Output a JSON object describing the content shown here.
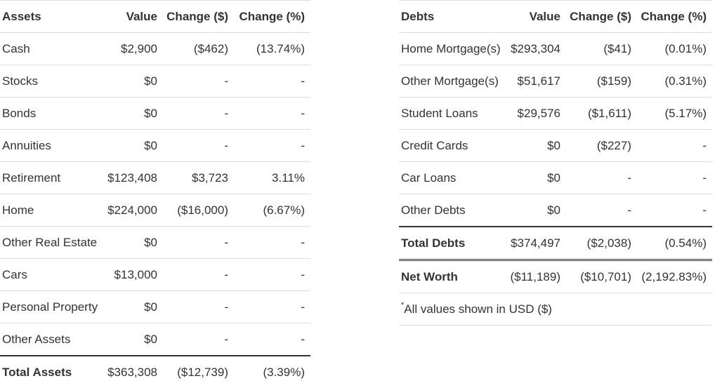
{
  "assets": {
    "headers": {
      "name": "Assets",
      "value": "Value",
      "change_abs": "Change ($)",
      "change_pct": "Change (%)"
    },
    "rows": [
      {
        "name": "Cash",
        "value": "$2,900",
        "change_abs": "($462)",
        "change_pct": "(13.74%)"
      },
      {
        "name": "Stocks",
        "value": "$0",
        "change_abs": "-",
        "change_pct": "-"
      },
      {
        "name": "Bonds",
        "value": "$0",
        "change_abs": "-",
        "change_pct": "-"
      },
      {
        "name": "Annuities",
        "value": "$0",
        "change_abs": "-",
        "change_pct": "-"
      },
      {
        "name": "Retirement",
        "value": "$123,408",
        "change_abs": "$3,723",
        "change_pct": "3.11%"
      },
      {
        "name": "Home",
        "value": "$224,000",
        "change_abs": "($16,000)",
        "change_pct": "(6.67%)"
      },
      {
        "name": "Other Real Estate",
        "value": "$0",
        "change_abs": "-",
        "change_pct": "-"
      },
      {
        "name": "Cars",
        "value": "$13,000",
        "change_abs": "-",
        "change_pct": "-"
      },
      {
        "name": "Personal Property",
        "value": "$0",
        "change_abs": "-",
        "change_pct": "-"
      },
      {
        "name": "Other Assets",
        "value": "$0",
        "change_abs": "-",
        "change_pct": "-"
      }
    ],
    "total": {
      "name": "Total Assets",
      "value": "$363,308",
      "change_abs": "($12,739)",
      "change_pct": "(3.39%)"
    }
  },
  "debts": {
    "headers": {
      "name": "Debts",
      "value": "Value",
      "change_abs": "Change ($)",
      "change_pct": "Change (%)"
    },
    "rows": [
      {
        "name": "Home Mortgage(s)",
        "value": "$293,304",
        "change_abs": "($41)",
        "change_pct": "(0.01%)"
      },
      {
        "name": "Other Mortgage(s)",
        "value": "$51,617",
        "change_abs": "($159)",
        "change_pct": "(0.31%)"
      },
      {
        "name": "Student Loans",
        "value": "$29,576",
        "change_abs": "($1,611)",
        "change_pct": "(5.17%)"
      },
      {
        "name": "Credit Cards",
        "value": "$0",
        "change_abs": "($227)",
        "change_pct": "-"
      },
      {
        "name": "Car Loans",
        "value": "$0",
        "change_abs": "-",
        "change_pct": "-"
      },
      {
        "name": "Other Debts",
        "value": "$0",
        "change_abs": "-",
        "change_pct": "-"
      }
    ],
    "total": {
      "name": "Total Debts",
      "value": "$374,497",
      "change_abs": "($2,038)",
      "change_pct": "(0.54%)"
    }
  },
  "net_worth": {
    "name": "Net Worth",
    "value": "($11,189)",
    "change_abs": "($10,701)",
    "change_pct": "(2,192.83%)"
  },
  "note": {
    "star": "*",
    "text": "All values shown in USD ($)"
  }
}
